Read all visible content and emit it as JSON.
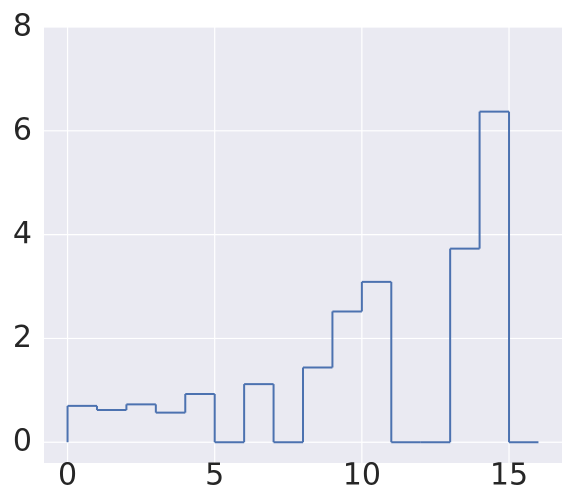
{
  "chart_data": {
    "type": "histogram",
    "bins": [
      0,
      1,
      2,
      3,
      4,
      5,
      6,
      7,
      8,
      9,
      10,
      11,
      12,
      13,
      14,
      15,
      16
    ],
    "counts": [
      0.7,
      0.62,
      0.73,
      0.57,
      0.93,
      0,
      1.12,
      0,
      1.44,
      2.52,
      3.09,
      0,
      0,
      3.73,
      6.37,
      0
    ],
    "color": "#4c72b0",
    "xlim": [
      -0.8,
      16.8
    ],
    "ylim": [
      -0.4,
      8
    ],
    "xticks": [
      0,
      5,
      10,
      15
    ],
    "yticks": [
      0,
      2,
      4,
      6,
      8
    ],
    "grid": true
  }
}
